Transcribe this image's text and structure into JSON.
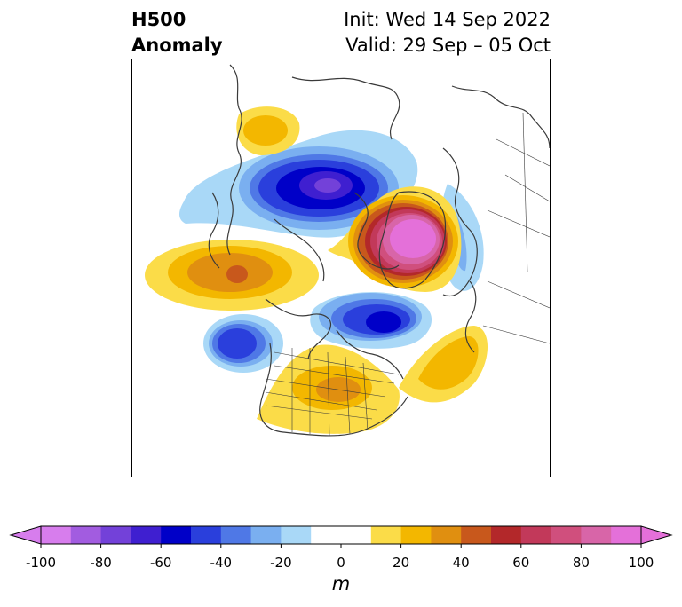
{
  "title": {
    "left_line1": "H500",
    "left_line2": "Anomaly",
    "right_line1": "Init: Wed 14 Sep 2022",
    "right_line2": "Valid: 29 Sep – 05 Oct"
  },
  "colorbar": {
    "unit": "m",
    "min": -100,
    "max": 100,
    "step": 10,
    "ticks": [
      -100,
      -80,
      -60,
      -40,
      -20,
      0,
      20,
      40,
      60,
      80,
      100
    ],
    "tick_labels": [
      "-100",
      "-80",
      "-60",
      "-40",
      "-20",
      "0",
      "20",
      "40",
      "60",
      "80",
      "100"
    ],
    "colors": [
      "#d77ded",
      "#a25ce0",
      "#7341d9",
      "#3f1fd0",
      "#0000c8",
      "#2a3fdc",
      "#4f78e6",
      "#7aaff0",
      "#a9d8f7",
      "#ffffff",
      "#ffffff",
      "#fbdc48",
      "#f3b700",
      "#e08f10",
      "#c8581c",
      "#b3282a",
      "#c2395a",
      "#d04f7d",
      "#d865a8",
      "#e470d9"
    ],
    "extend_low_color": "#d77ded",
    "extend_high_color": "#e470d9"
  },
  "map": {
    "projection": "polar-stereographic",
    "anomaly_centers": [
      {
        "name": "hudson-bay-trough",
        "value": -70
      },
      {
        "name": "greenland-ridge",
        "value": 100
      },
      {
        "name": "alaska-ridge",
        "value": 40
      },
      {
        "name": "north-atlantic-trough",
        "value": -60
      },
      {
        "name": "north-pacific-trough",
        "value": -50
      },
      {
        "name": "eastern-us-ridge",
        "value": 40
      },
      {
        "name": "central-atlantic-ridge",
        "value": 30
      },
      {
        "name": "siberia-ridge",
        "value": 20
      }
    ]
  }
}
